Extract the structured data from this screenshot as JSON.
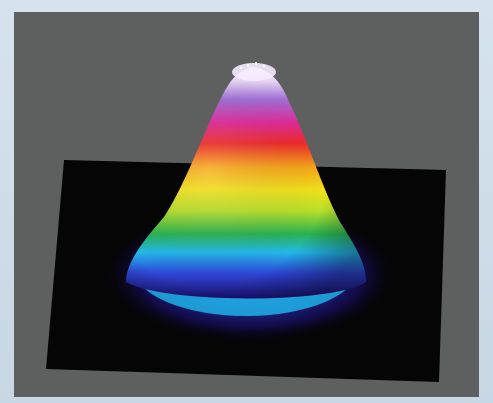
{
  "image": {
    "subject": "beam-profile-3d",
    "colors": {
      "background": "#5e6060",
      "frame": "#cfdde8",
      "base": "#000000",
      "bands": [
        "#1a0f6e",
        "#2f47d8",
        "#22b9e8",
        "#2bb34f",
        "#b9e02a",
        "#f2e11a",
        "#f7a31a",
        "#ee2a2a",
        "#e02a9a",
        "#a070d8",
        "#e9d7f5"
      ]
    }
  }
}
